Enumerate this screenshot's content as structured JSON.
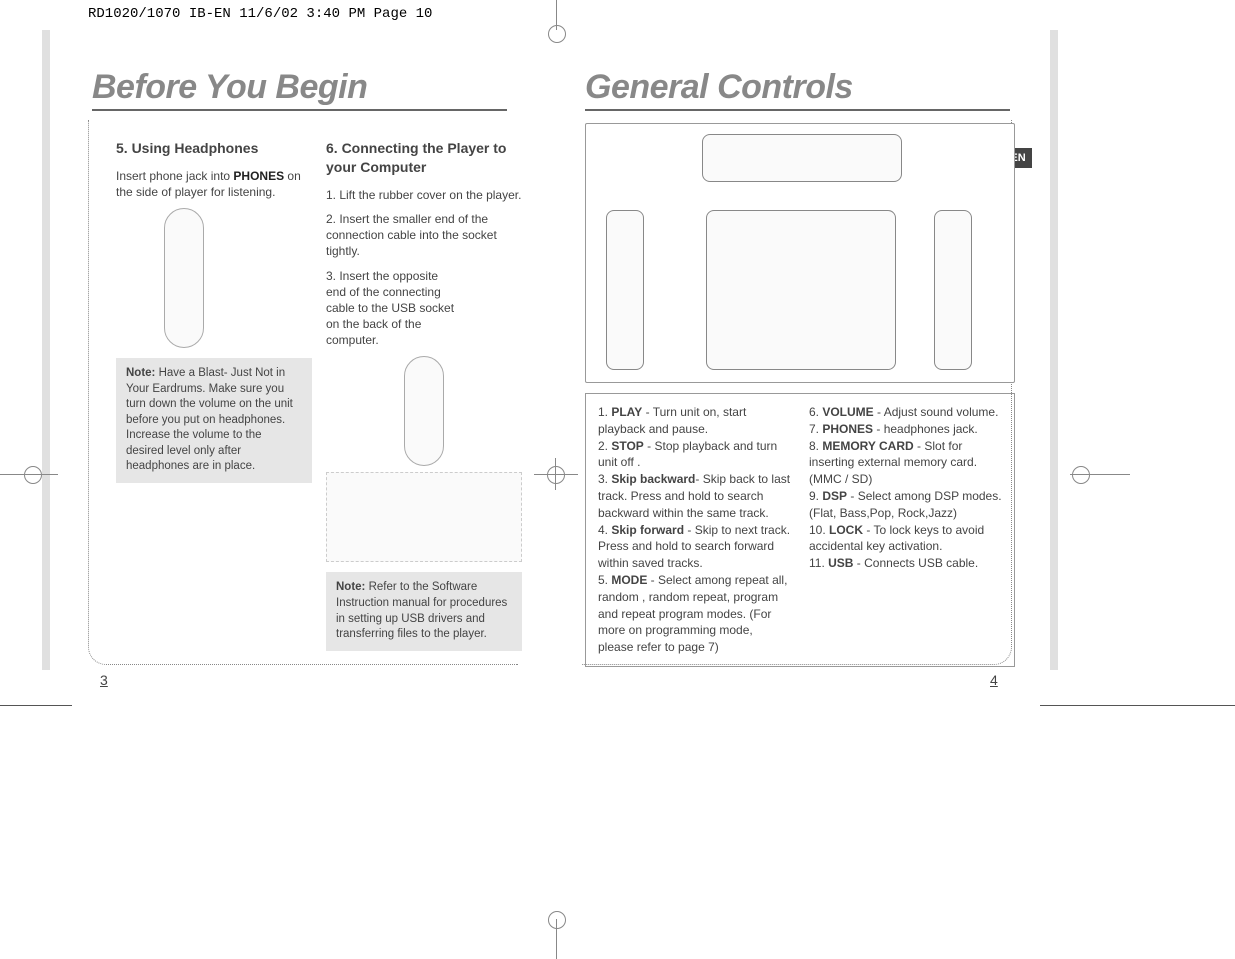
{
  "header": "RD1020/1070 IB-EN  11/6/02  3:40 PM  Page 10",
  "langTab": "EN",
  "leftPage": {
    "title": "Before You Begin",
    "col1": {
      "heading": "5. Using Headphones",
      "intro_a": "Insert phone jack into ",
      "intro_b": "PHONES",
      "intro_c": " on the side of player for listening.",
      "noteLabel": "Note:",
      "noteText": "  Have a Blast- Just Not in Your Eardrums. Make sure you turn down the volume on the unit before you put on headphones. Increase the volume to the desired level only after headphones are in place."
    },
    "col2": {
      "heading": "6. Connecting the Player to your Computer",
      "step1": "1. Lift the rubber cover on the player.",
      "step2": "2.  Insert the smaller end of the connection cable into the socket tightly.",
      "step3": "3.  Insert the opposite end of the connecting cable to the USB socket on the back of the computer.",
      "noteLabel": "Note:",
      "noteText": "  Refer to the Software Instruction manual for procedures in setting up USB drivers and transferring files to the player."
    },
    "pageNum": "3"
  },
  "rightPage": {
    "title": "General Controls",
    "controls": {
      "left": [
        {
          "n": "1.",
          "b": "PLAY",
          "t": " - Turn unit on, start playback and pause."
        },
        {
          "n": "2.",
          "b": "STOP",
          "t": " - Stop playback and turn unit off ."
        },
        {
          "n": "3.",
          "b": "Skip backward",
          "t": "- Skip back to last track.  Press and hold to search backward within the same track."
        },
        {
          "n": "4.",
          "b": "Skip forward",
          "t": " - Skip to next track. Press and hold to search forward within saved tracks."
        },
        {
          "n": "5.",
          "b": "MODE",
          "t": " - Select among repeat all, random , random repeat, program and repeat program modes. (For more on programming mode, please refer to page 7)"
        }
      ],
      "right": [
        {
          "n": "6.",
          "b": "VOLUME",
          "t": " - Adjust sound volume."
        },
        {
          "n": "7.",
          "b": "PHONES",
          "t": " - headphones jack."
        },
        {
          "n": "8.",
          "b": "MEMORY CARD",
          "t": " - Slot for inserting external memory card. (MMC / SD)"
        },
        {
          "n": "9.",
          "b": "DSP",
          "t": " - Select among DSP modes. (Flat, Bass,Pop, Rock,Jazz)"
        },
        {
          "n": "10.",
          "b": "LOCK",
          "t": " - To lock keys to avoid accidental key activation."
        },
        {
          "n": "11.",
          "b": "USB",
          "t": " - Connects USB cable."
        }
      ]
    },
    "pageNum": "4"
  }
}
